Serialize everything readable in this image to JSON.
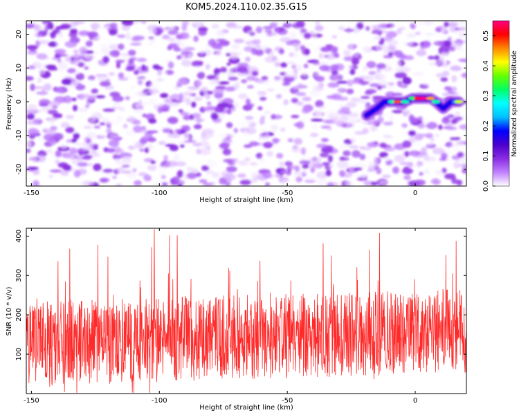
{
  "chart_data": [
    {
      "type": "heatmap",
      "title": "KOM5.2024.110.02.35.G15",
      "xlabel": "Height of straight line (km)",
      "ylabel": "Frequency (Hz)",
      "xlim": [
        -152,
        20
      ],
      "ylim": [
        -25,
        24
      ],
      "xticks": [
        -150,
        -100,
        -50,
        0
      ],
      "yticks": [
        -20,
        -10,
        0,
        10,
        20
      ],
      "colorbar": {
        "label": "Normalized spectral amplitude",
        "range": [
          0,
          0.55
        ],
        "ticks": [
          0.0,
          0.1,
          0.2,
          0.3,
          0.4,
          0.5
        ],
        "colormap": [
          "#ffffff",
          "#c080ff",
          "#8a2be2",
          "#4b00cc",
          "#0000ff",
          "#00bfff",
          "#00ffff",
          "#00ff66",
          "#66ff00",
          "#ffff00",
          "#ff8800",
          "#ff0000",
          "#ff0080"
        ]
      },
      "background_noise": {
        "amplitude_range": [
          0.0,
          0.1
        ]
      },
      "ridge": [
        {
          "x": -19,
          "y": -4,
          "v": 0.08
        },
        {
          "x": -15,
          "y": -2,
          "v": 0.12
        },
        {
          "x": -12,
          "y": 0,
          "v": 0.16
        },
        {
          "x": -9,
          "y": 0,
          "v": 0.3
        },
        {
          "x": -7,
          "y": 0,
          "v": 0.48
        },
        {
          "x": -4,
          "y": 0,
          "v": 0.3
        },
        {
          "x": -1,
          "y": 1,
          "v": 0.32
        },
        {
          "x": 1,
          "y": 1,
          "v": 0.5
        },
        {
          "x": 3,
          "y": 1,
          "v": 0.55
        },
        {
          "x": 6,
          "y": 1,
          "v": 0.45
        },
        {
          "x": 8,
          "y": 0,
          "v": 0.3
        },
        {
          "x": 11,
          "y": -2,
          "v": 0.18
        },
        {
          "x": 14,
          "y": 0,
          "v": 0.14
        },
        {
          "x": 16,
          "y": 0,
          "v": 0.22
        },
        {
          "x": 17,
          "y": 0,
          "v": 0.4
        }
      ]
    },
    {
      "type": "line",
      "xlabel": "Height of straight line (km)",
      "ylabel": "SNR (10 * v/v)",
      "xlim": [
        -152,
        20
      ],
      "ylim": [
        0,
        420
      ],
      "xticks": [
        -150,
        -100,
        -50,
        0
      ],
      "yticks": [
        100,
        200,
        300,
        400
      ],
      "color": "#ff2a2a",
      "samples": 1500,
      "typical_range": [
        25,
        230
      ],
      "peaks": [
        {
          "x": -102,
          "y": 418
        },
        {
          "x": -96,
          "y": 402
        },
        {
          "x": -93,
          "y": 402
        },
        {
          "x": -14,
          "y": 408
        },
        {
          "x": -36,
          "y": 382
        },
        {
          "x": -124,
          "y": 378
        },
        {
          "x": -103,
          "y": 372
        },
        {
          "x": 16,
          "y": 388
        },
        {
          "x": -135,
          "y": 368
        },
        {
          "x": -18,
          "y": 366
        },
        {
          "x": 12,
          "y": 352
        }
      ]
    }
  ]
}
